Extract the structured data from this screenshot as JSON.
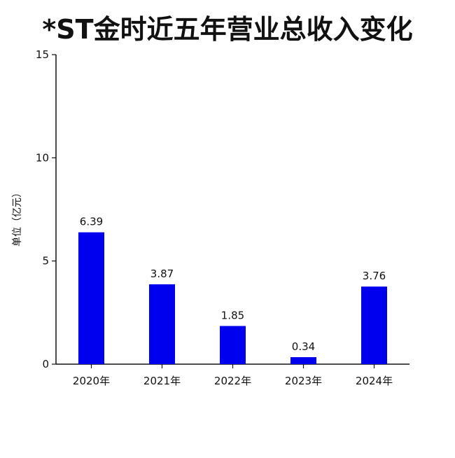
{
  "chart_data": {
    "type": "bar",
    "title": "*ST金时近五年营业总收入变化",
    "xlabel": "",
    "ylabel": "单位（亿元）",
    "categories": [
      "2020年",
      "2021年",
      "2022年",
      "2023年",
      "2024年"
    ],
    "values": [
      6.39,
      3.87,
      1.85,
      0.34,
      3.76
    ],
    "value_labels": [
      "6.39",
      "3.87",
      "1.85",
      "0.34",
      "3.76"
    ],
    "ylim": [
      0,
      15
    ],
    "yticks": [
      0,
      5,
      10,
      15
    ],
    "ytick_labels": [
      "0",
      "5",
      "10",
      "15"
    ],
    "grid": false,
    "legend": "none",
    "colors": {
      "bar": "#0000ee",
      "axis": "#111111",
      "text": "#111111"
    }
  }
}
